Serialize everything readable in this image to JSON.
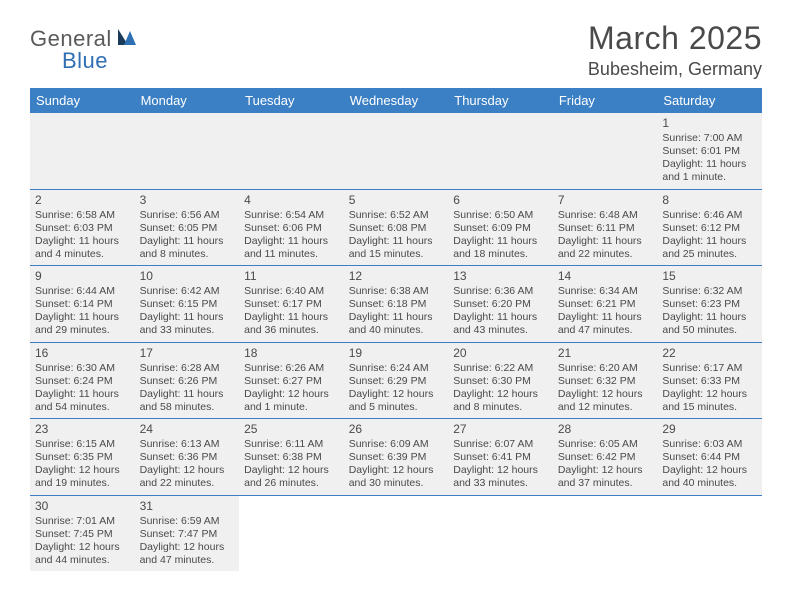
{
  "logo": {
    "part1": "General",
    "part2": "Blue"
  },
  "title": "March 2025",
  "location": "Bubesheim, Germany",
  "dayHeaders": [
    "Sunday",
    "Monday",
    "Tuesday",
    "Wednesday",
    "Thursday",
    "Friday",
    "Saturday"
  ],
  "colors": {
    "headerBg": "#3b7fc4",
    "headerText": "#ffffff",
    "cellBg": "#f0f0f0",
    "border": "#3b7fc4",
    "textColor": "#4a4a4a",
    "logoBlue": "#2f6fb3",
    "logoDark": "#1a3a5a"
  },
  "weeks": [
    [
      null,
      null,
      null,
      null,
      null,
      null,
      {
        "n": "1",
        "sunrise": "Sunrise: 7:00 AM",
        "sunset": "Sunset: 6:01 PM",
        "daylight": "Daylight: 11 hours and 1 minute."
      }
    ],
    [
      {
        "n": "2",
        "sunrise": "Sunrise: 6:58 AM",
        "sunset": "Sunset: 6:03 PM",
        "daylight": "Daylight: 11 hours and 4 minutes."
      },
      {
        "n": "3",
        "sunrise": "Sunrise: 6:56 AM",
        "sunset": "Sunset: 6:05 PM",
        "daylight": "Daylight: 11 hours and 8 minutes."
      },
      {
        "n": "4",
        "sunrise": "Sunrise: 6:54 AM",
        "sunset": "Sunset: 6:06 PM",
        "daylight": "Daylight: 11 hours and 11 minutes."
      },
      {
        "n": "5",
        "sunrise": "Sunrise: 6:52 AM",
        "sunset": "Sunset: 6:08 PM",
        "daylight": "Daylight: 11 hours and 15 minutes."
      },
      {
        "n": "6",
        "sunrise": "Sunrise: 6:50 AM",
        "sunset": "Sunset: 6:09 PM",
        "daylight": "Daylight: 11 hours and 18 minutes."
      },
      {
        "n": "7",
        "sunrise": "Sunrise: 6:48 AM",
        "sunset": "Sunset: 6:11 PM",
        "daylight": "Daylight: 11 hours and 22 minutes."
      },
      {
        "n": "8",
        "sunrise": "Sunrise: 6:46 AM",
        "sunset": "Sunset: 6:12 PM",
        "daylight": "Daylight: 11 hours and 25 minutes."
      }
    ],
    [
      {
        "n": "9",
        "sunrise": "Sunrise: 6:44 AM",
        "sunset": "Sunset: 6:14 PM",
        "daylight": "Daylight: 11 hours and 29 minutes."
      },
      {
        "n": "10",
        "sunrise": "Sunrise: 6:42 AM",
        "sunset": "Sunset: 6:15 PM",
        "daylight": "Daylight: 11 hours and 33 minutes."
      },
      {
        "n": "11",
        "sunrise": "Sunrise: 6:40 AM",
        "sunset": "Sunset: 6:17 PM",
        "daylight": "Daylight: 11 hours and 36 minutes."
      },
      {
        "n": "12",
        "sunrise": "Sunrise: 6:38 AM",
        "sunset": "Sunset: 6:18 PM",
        "daylight": "Daylight: 11 hours and 40 minutes."
      },
      {
        "n": "13",
        "sunrise": "Sunrise: 6:36 AM",
        "sunset": "Sunset: 6:20 PM",
        "daylight": "Daylight: 11 hours and 43 minutes."
      },
      {
        "n": "14",
        "sunrise": "Sunrise: 6:34 AM",
        "sunset": "Sunset: 6:21 PM",
        "daylight": "Daylight: 11 hours and 47 minutes."
      },
      {
        "n": "15",
        "sunrise": "Sunrise: 6:32 AM",
        "sunset": "Sunset: 6:23 PM",
        "daylight": "Daylight: 11 hours and 50 minutes."
      }
    ],
    [
      {
        "n": "16",
        "sunrise": "Sunrise: 6:30 AM",
        "sunset": "Sunset: 6:24 PM",
        "daylight": "Daylight: 11 hours and 54 minutes."
      },
      {
        "n": "17",
        "sunrise": "Sunrise: 6:28 AM",
        "sunset": "Sunset: 6:26 PM",
        "daylight": "Daylight: 11 hours and 58 minutes."
      },
      {
        "n": "18",
        "sunrise": "Sunrise: 6:26 AM",
        "sunset": "Sunset: 6:27 PM",
        "daylight": "Daylight: 12 hours and 1 minute."
      },
      {
        "n": "19",
        "sunrise": "Sunrise: 6:24 AM",
        "sunset": "Sunset: 6:29 PM",
        "daylight": "Daylight: 12 hours and 5 minutes."
      },
      {
        "n": "20",
        "sunrise": "Sunrise: 6:22 AM",
        "sunset": "Sunset: 6:30 PM",
        "daylight": "Daylight: 12 hours and 8 minutes."
      },
      {
        "n": "21",
        "sunrise": "Sunrise: 6:20 AM",
        "sunset": "Sunset: 6:32 PM",
        "daylight": "Daylight: 12 hours and 12 minutes."
      },
      {
        "n": "22",
        "sunrise": "Sunrise: 6:17 AM",
        "sunset": "Sunset: 6:33 PM",
        "daylight": "Daylight: 12 hours and 15 minutes."
      }
    ],
    [
      {
        "n": "23",
        "sunrise": "Sunrise: 6:15 AM",
        "sunset": "Sunset: 6:35 PM",
        "daylight": "Daylight: 12 hours and 19 minutes."
      },
      {
        "n": "24",
        "sunrise": "Sunrise: 6:13 AM",
        "sunset": "Sunset: 6:36 PM",
        "daylight": "Daylight: 12 hours and 22 minutes."
      },
      {
        "n": "25",
        "sunrise": "Sunrise: 6:11 AM",
        "sunset": "Sunset: 6:38 PM",
        "daylight": "Daylight: 12 hours and 26 minutes."
      },
      {
        "n": "26",
        "sunrise": "Sunrise: 6:09 AM",
        "sunset": "Sunset: 6:39 PM",
        "daylight": "Daylight: 12 hours and 30 minutes."
      },
      {
        "n": "27",
        "sunrise": "Sunrise: 6:07 AM",
        "sunset": "Sunset: 6:41 PM",
        "daylight": "Daylight: 12 hours and 33 minutes."
      },
      {
        "n": "28",
        "sunrise": "Sunrise: 6:05 AM",
        "sunset": "Sunset: 6:42 PM",
        "daylight": "Daylight: 12 hours and 37 minutes."
      },
      {
        "n": "29",
        "sunrise": "Sunrise: 6:03 AM",
        "sunset": "Sunset: 6:44 PM",
        "daylight": "Daylight: 12 hours and 40 minutes."
      }
    ],
    [
      {
        "n": "30",
        "sunrise": "Sunrise: 7:01 AM",
        "sunset": "Sunset: 7:45 PM",
        "daylight": "Daylight: 12 hours and 44 minutes."
      },
      {
        "n": "31",
        "sunrise": "Sunrise: 6:59 AM",
        "sunset": "Sunset: 7:47 PM",
        "daylight": "Daylight: 12 hours and 47 minutes."
      },
      null,
      null,
      null,
      null,
      null
    ]
  ]
}
